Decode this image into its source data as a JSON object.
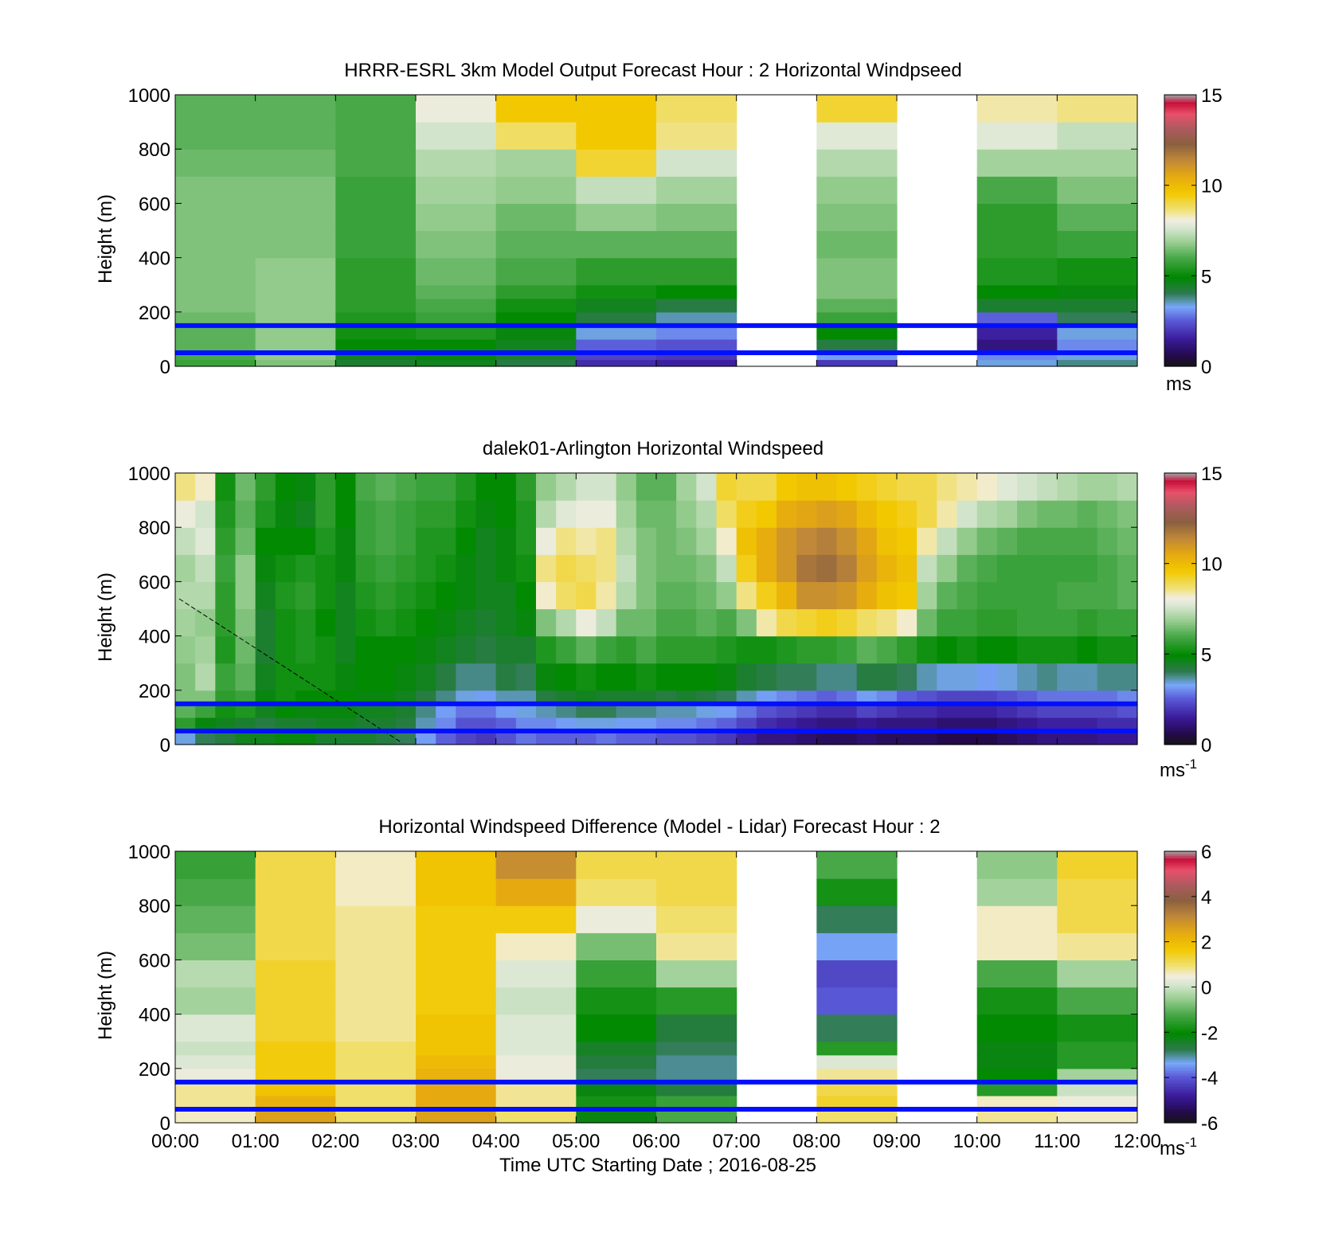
{
  "chart_data": [
    {
      "type": "heatmap",
      "title": "HRRR-ESRL 3km Model Output   Forecast Hour : 2 Horizontal Windpseed",
      "ylabel": "Height (m)",
      "xlabel": "",
      "ylim": [
        0,
        1000
      ],
      "yticks": [
        "0",
        "200",
        "400",
        "600",
        "800",
        "1000"
      ],
      "x_ticks_labeled": false,
      "colorbar": {
        "min": 0,
        "max": 15,
        "ticks": [
          "0",
          "5",
          "10",
          "15"
        ],
        "unit": "ms"
      },
      "reference_lines_m": [
        150,
        50
      ],
      "time_hours": [
        0,
        1,
        2,
        3,
        4,
        5,
        6,
        7,
        8,
        9,
        10,
        11
      ],
      "height_levels_m": [
        0,
        25,
        50,
        100,
        150,
        200,
        250,
        300,
        400,
        500,
        600,
        700,
        800,
        900,
        1000
      ],
      "values": [
        [
          5.8,
          6.0,
          6.2,
          6.2,
          6.4,
          6.6,
          6.6,
          6.6,
          6.6,
          6.6,
          6.6,
          6.4,
          6.2,
          6.2
        ],
        [
          6.6,
          6.8,
          6.8,
          6.8,
          6.8,
          6.8,
          6.8,
          6.8,
          6.6,
          6.6,
          6.6,
          6.4,
          6.2,
          6.2
        ],
        [
          4.4,
          4.6,
          5.0,
          5.2,
          5.4,
          5.6,
          5.6,
          5.6,
          5.8,
          5.8,
          5.8,
          6.0,
          6.0,
          6.0
        ],
        [
          4.6,
          4.8,
          5.0,
          5.4,
          5.8,
          6.0,
          6.2,
          6.4,
          6.6,
          6.8,
          7.0,
          7.2,
          7.6,
          8.0
        ],
        [
          4.2,
          4.4,
          4.6,
          4.8,
          5.0,
          5.2,
          5.6,
          6.0,
          6.2,
          6.4,
          6.8,
          7.0,
          8.8,
          9.6
        ],
        [
          1.8,
          2.2,
          2.6,
          3.4,
          4.2,
          4.6,
          5.2,
          5.6,
          6.2,
          6.8,
          7.4,
          9.2,
          9.6,
          9.6
        ],
        [
          1.6,
          2.0,
          2.4,
          3.0,
          3.6,
          4.2,
          5.0,
          5.6,
          6.2,
          6.6,
          7.0,
          7.6,
          8.6,
          8.8
        ],
        [
          null,
          null,
          null,
          null,
          null,
          null,
          null,
          null,
          null,
          null,
          null,
          null,
          null,
          null
        ],
        [
          2.0,
          3.2,
          4.2,
          5.0,
          5.8,
          6.2,
          6.6,
          6.6,
          6.4,
          6.6,
          6.8,
          7.2,
          7.8,
          9.2
        ],
        [
          null,
          null,
          null,
          null,
          null,
          null,
          null,
          null,
          null,
          null,
          null,
          null,
          null,
          null
        ],
        [
          3.4,
          3.0,
          1.2,
          1.6,
          2.6,
          4.4,
          5.0,
          5.4,
          5.6,
          5.6,
          6.0,
          7.0,
          7.8,
          8.4
        ],
        [
          3.8,
          3.4,
          3.0,
          3.4,
          4.0,
          4.4,
          4.8,
          5.2,
          5.8,
          6.2,
          6.6,
          7.0,
          7.4,
          8.6
        ]
      ]
    },
    {
      "type": "heatmap",
      "title": "dalek01-Arlington  Horizontal Windspeed",
      "ylabel": "Height (m)",
      "xlabel": "",
      "ylim": [
        0,
        1000
      ],
      "yticks": [
        "0",
        "200",
        "400",
        "600",
        "800",
        "1000"
      ],
      "x_ticks_labeled": false,
      "colorbar": {
        "min": 0,
        "max": 15,
        "ticks": [
          "0",
          "5",
          "10",
          "15"
        ],
        "unit": "ms",
        "unit_sup": "-1"
      },
      "reference_lines_m": [
        150,
        50
      ],
      "time_hours": [
        0,
        0.25,
        0.5,
        0.75,
        1,
        1.25,
        1.5,
        1.75,
        2,
        2.25,
        2.5,
        2.75,
        3,
        3.25,
        3.5,
        3.75,
        4,
        4.25,
        4.5,
        4.75,
        5,
        5.25,
        5.5,
        5.75,
        6,
        6.25,
        6.5,
        6.75,
        7,
        7.25,
        7.5,
        7.75,
        8,
        8.25,
        8.5,
        8.75,
        9,
        9.25,
        9.5,
        9.75,
        10,
        10.25,
        10.5,
        10.75,
        11,
        11.25,
        11.5,
        11.75
      ],
      "height_levels_m": [
        0,
        50,
        100,
        150,
        200,
        300,
        400,
        500,
        600,
        700,
        800,
        900,
        1000
      ],
      "values": [
        [
          3.4,
          5.6,
          6.2,
          6.6,
          6.6,
          6.8,
          7.0,
          7.2,
          7.0,
          7.4,
          8.0,
          8.6
        ],
        [
          4.0,
          4.8,
          5.8,
          6.6,
          7.2,
          7.0,
          6.8,
          7.2,
          7.4,
          7.8,
          7.6,
          8.2
        ],
        [
          4.2,
          4.6,
          5.2,
          5.6,
          5.8,
          5.4,
          5.6,
          5.6,
          5.8,
          5.6,
          5.4,
          5.2
        ],
        [
          4.6,
          4.4,
          5.4,
          5.8,
          6.2,
          6.4,
          6.6,
          6.8,
          6.8,
          6.4,
          6.2,
          6.4
        ],
        [
          4.6,
          4.2,
          4.6,
          4.8,
          4.6,
          4.4,
          4.4,
          4.6,
          4.8,
          5.0,
          5.4,
          5.6
        ],
        [
          4.8,
          4.4,
          5.0,
          5.2,
          5.2,
          5.2,
          5.2,
          5.4,
          5.2,
          5.0,
          4.8,
          5.0
        ],
        [
          4.8,
          4.4,
          4.8,
          5.0,
          5.2,
          5.4,
          5.4,
          5.6,
          5.4,
          5.0,
          4.6,
          4.8
        ],
        [
          4.4,
          4.6,
          4.8,
          5.0,
          5.2,
          5.2,
          5.0,
          5.2,
          5.2,
          5.4,
          5.6,
          5.6
        ],
        [
          4.4,
          4.6,
          4.8,
          5.0,
          4.8,
          4.6,
          4.6,
          4.6,
          4.8,
          4.8,
          5.0,
          5.0
        ],
        [
          4.4,
          4.4,
          4.6,
          4.8,
          5.0,
          5.0,
          5.2,
          5.4,
          5.6,
          5.8,
          5.8,
          6.0
        ],
        [
          4.2,
          4.4,
          4.6,
          4.8,
          5.0,
          5.0,
          5.4,
          5.6,
          5.8,
          6.0,
          6.0,
          6.2
        ],
        [
          4.0,
          4.2,
          4.4,
          4.6,
          4.8,
          5.0,
          5.2,
          5.4,
          5.6,
          5.8,
          5.8,
          6.0
        ],
        [
          3.2,
          3.6,
          3.8,
          4.2,
          4.6,
          4.8,
          5.0,
          5.2,
          5.4,
          5.4,
          5.6,
          5.8
        ],
        [
          2.6,
          3.0,
          3.2,
          3.8,
          4.2,
          4.6,
          4.8,
          5.0,
          5.2,
          5.4,
          5.6,
          5.8
        ],
        [
          2.2,
          2.4,
          2.8,
          3.4,
          3.8,
          4.4,
          4.6,
          4.8,
          4.8,
          5.0,
          5.2,
          5.4
        ],
        [
          2.0,
          2.4,
          2.8,
          3.2,
          3.8,
          4.2,
          4.4,
          4.6,
          4.6,
          4.6,
          4.8,
          5.0
        ],
        [
          2.4,
          2.6,
          3.2,
          3.6,
          4.2,
          4.4,
          4.6,
          4.6,
          4.8,
          4.8,
          5.0,
          5.0
        ],
        [
          2.8,
          3.0,
          3.4,
          3.6,
          4.0,
          4.4,
          4.8,
          5.0,
          5.2,
          5.4,
          5.4,
          5.6
        ],
        [
          2.6,
          3.0,
          3.6,
          4.2,
          4.8,
          5.4,
          6.6,
          8.2,
          8.6,
          8.0,
          7.2,
          6.8
        ],
        [
          2.6,
          3.2,
          3.8,
          4.4,
          5.0,
          5.8,
          7.2,
          8.8,
          9.0,
          8.6,
          7.8,
          7.2
        ],
        [
          2.6,
          3.4,
          4.0,
          4.6,
          5.2,
          6.2,
          8.0,
          9.0,
          8.8,
          8.4,
          8.0,
          7.6
        ],
        [
          2.8,
          3.4,
          4.0,
          4.4,
          5.0,
          5.8,
          7.4,
          8.4,
          8.6,
          8.6,
          8.0,
          7.6
        ],
        [
          2.6,
          3.2,
          3.8,
          4.4,
          5.0,
          5.6,
          6.4,
          7.2,
          7.4,
          7.2,
          7.0,
          6.8
        ],
        [
          2.6,
          3.2,
          3.8,
          4.4,
          5.2,
          6.0,
          6.4,
          6.6,
          6.6,
          6.6,
          6.4,
          6.2
        ],
        [
          2.4,
          3.0,
          3.6,
          4.2,
          5.0,
          5.6,
          6.0,
          6.2,
          6.4,
          6.4,
          6.4,
          6.2
        ],
        [
          2.4,
          3.0,
          3.6,
          4.4,
          5.0,
          5.6,
          6.0,
          6.2,
          6.4,
          6.6,
          6.8,
          7.0
        ],
        [
          2.2,
          2.8,
          3.4,
          4.2,
          5.0,
          5.6,
          6.2,
          6.4,
          6.6,
          7.0,
          7.2,
          7.6
        ],
        [
          2.0,
          2.6,
          3.2,
          4.0,
          4.8,
          5.4,
          6.0,
          6.8,
          7.4,
          8.2,
          8.8,
          9.2
        ],
        [
          1.6,
          2.2,
          2.8,
          3.6,
          4.4,
          5.2,
          6.6,
          8.6,
          9.4,
          9.8,
          9.4,
          9.0
        ],
        [
          1.2,
          1.8,
          2.4,
          3.2,
          4.2,
          5.2,
          8.4,
          9.4,
          10.4,
          10.4,
          9.6,
          9.0
        ],
        [
          1.2,
          1.6,
          2.2,
          3.0,
          4.0,
          5.4,
          9.0,
          10.2,
          11.0,
          11.0,
          10.4,
          9.6
        ],
        [
          1.0,
          1.4,
          2.0,
          2.8,
          4.0,
          5.6,
          9.2,
          11.2,
          11.8,
          11.4,
          10.6,
          9.8
        ],
        [
          0.8,
          1.2,
          1.8,
          2.6,
          3.8,
          5.6,
          9.4,
          11.2,
          12.0,
          11.6,
          10.8,
          9.8
        ],
        [
          0.8,
          1.2,
          1.8,
          2.8,
          3.8,
          5.8,
          9.2,
          11.0,
          11.6,
          11.2,
          10.6,
          9.6
        ],
        [
          1.0,
          1.4,
          2.2,
          3.2,
          4.2,
          6.2,
          8.8,
          10.4,
          10.8,
          10.6,
          10.0,
          9.4
        ],
        [
          0.8,
          1.2,
          2.0,
          3.0,
          4.2,
          6.0,
          8.6,
          9.8,
          10.2,
          9.8,
          9.6,
          9.2
        ],
        [
          0.8,
          1.2,
          1.8,
          2.6,
          4.0,
          5.6,
          8.2,
          9.6,
          9.8,
          9.6,
          9.4,
          9.0
        ],
        [
          0.8,
          1.2,
          1.8,
          2.4,
          3.6,
          5.2,
          6.4,
          7.0,
          7.4,
          8.4,
          9.0,
          9.0
        ],
        [
          0.6,
          1.0,
          1.6,
          2.2,
          3.4,
          5.0,
          5.8,
          6.2,
          6.8,
          7.4,
          8.4,
          8.6
        ],
        [
          0.6,
          1.0,
          1.6,
          2.2,
          3.4,
          5.2,
          5.8,
          6.0,
          6.2,
          6.8,
          7.6,
          8.4
        ],
        [
          0.6,
          1.0,
          1.6,
          2.2,
          3.2,
          5.0,
          5.6,
          5.8,
          6.0,
          6.4,
          7.2,
          8.2
        ],
        [
          0.8,
          1.2,
          1.8,
          2.4,
          3.4,
          5.0,
          5.6,
          5.8,
          5.8,
          6.2,
          7.0,
          7.8
        ],
        [
          1.0,
          1.4,
          2.0,
          2.6,
          3.6,
          5.2,
          5.8,
          5.8,
          5.8,
          6.0,
          6.6,
          7.6
        ],
        [
          1.2,
          1.6,
          2.2,
          2.8,
          3.8,
          5.2,
          5.8,
          5.8,
          5.8,
          6.0,
          6.4,
          7.4
        ],
        [
          1.2,
          1.6,
          2.2,
          2.8,
          3.6,
          5.2,
          5.8,
          6.0,
          5.8,
          6.0,
          6.4,
          7.2
        ],
        [
          1.2,
          1.6,
          2.2,
          2.8,
          3.6,
          5.0,
          5.6,
          6.0,
          5.8,
          6.0,
          6.2,
          7.0
        ],
        [
          1.4,
          1.8,
          2.2,
          2.8,
          3.8,
          5.2,
          5.8,
          6.0,
          6.0,
          6.2,
          6.4,
          7.0
        ],
        [
          1.4,
          1.8,
          2.4,
          3.0,
          3.8,
          5.2,
          5.8,
          6.2,
          6.2,
          6.4,
          6.6,
          7.2
        ]
      ]
    },
    {
      "type": "heatmap",
      "title": "Horizontal Windspeed Difference (Model - Lidar) Forecast Hour : 2",
      "ylabel": "Height (m)",
      "xlabel": "Time UTC  Starting Date ; 2016-08-25",
      "ylim": [
        0,
        1000
      ],
      "yticks": [
        "0",
        "200",
        "400",
        "600",
        "800",
        "1000"
      ],
      "xticks": [
        "00:00",
        "01:00",
        "02:00",
        "03:00",
        "04:00",
        "05:00",
        "06:00",
        "07:00",
        "08:00",
        "09:00",
        "10:00",
        "11:00",
        "12:00"
      ],
      "colorbar": {
        "min": -6,
        "max": 6,
        "ticks": [
          "-6",
          "-4",
          "-2",
          "0",
          "2",
          "4",
          "6"
        ],
        "unit": "ms",
        "unit_sup": "-1"
      },
      "reference_lines_m": [
        150,
        50
      ],
      "time_hours": [
        0,
        1,
        2,
        3,
        4,
        5,
        6,
        7,
        8,
        9,
        10,
        11
      ],
      "height_levels_m": [
        0,
        50,
        100,
        150,
        200,
        250,
        300,
        400,
        500,
        600,
        700,
        800,
        900,
        1000
      ],
      "values": [
        [
          0.6,
          0.8,
          0.8,
          0.4,
          0.2,
          0.0,
          0.2,
          -0.4,
          -0.2,
          -0.8,
          -1.0,
          -1.2,
          -1.4
        ],
        [
          2.6,
          2.2,
          1.8,
          1.6,
          1.6,
          1.6,
          1.4,
          1.4,
          1.4,
          1.2,
          1.2,
          1.2,
          1.2
        ],
        [
          1.0,
          1.0,
          1.0,
          1.0,
          1.0,
          1.0,
          0.8,
          0.8,
          0.8,
          0.8,
          0.8,
          0.6,
          0.6
        ],
        [
          2.6,
          2.4,
          2.4,
          2.2,
          2.0,
          1.8,
          1.8,
          1.6,
          1.6,
          1.6,
          1.6,
          1.8,
          1.8
        ],
        [
          1.0,
          0.8,
          0.8,
          0.4,
          0.4,
          0.2,
          0.2,
          0.0,
          0.2,
          0.6,
          1.6,
          2.4,
          3.0
        ],
        [
          -2.2,
          -1.8,
          -2.2,
          -2.8,
          -2.6,
          -2.4,
          -2.0,
          -1.8,
          -1.4,
          -0.8,
          0.4,
          1.0,
          1.2
        ],
        [
          -1.2,
          -1.4,
          -2.6,
          -3.0,
          -3.0,
          -2.8,
          -2.6,
          -1.6,
          -0.4,
          0.8,
          1.0,
          1.2,
          1.2
        ],
        [
          null,
          null,
          null,
          null,
          null,
          null,
          null,
          null,
          null,
          null,
          null,
          null,
          null
        ],
        [
          1.0,
          1.4,
          1.2,
          0.8,
          0.2,
          -1.6,
          -2.8,
          -4.0,
          -4.2,
          -3.4,
          -2.8,
          -1.8,
          -1.2
        ],
        [
          null,
          null,
          null,
          null,
          null,
          null,
          null,
          null,
          null,
          null,
          null,
          null,
          null
        ],
        [
          0.8,
          0.6,
          -1.6,
          -2.0,
          -2.2,
          -2.2,
          -2.0,
          -1.8,
          -1.2,
          0.6,
          0.6,
          -0.4,
          -0.6
        ],
        [
          0.6,
          0.4,
          0.0,
          -0.4,
          -1.6,
          -1.6,
          -1.8,
          -1.2,
          -0.4,
          0.8,
          1.2,
          1.2,
          1.4
        ]
      ]
    }
  ]
}
